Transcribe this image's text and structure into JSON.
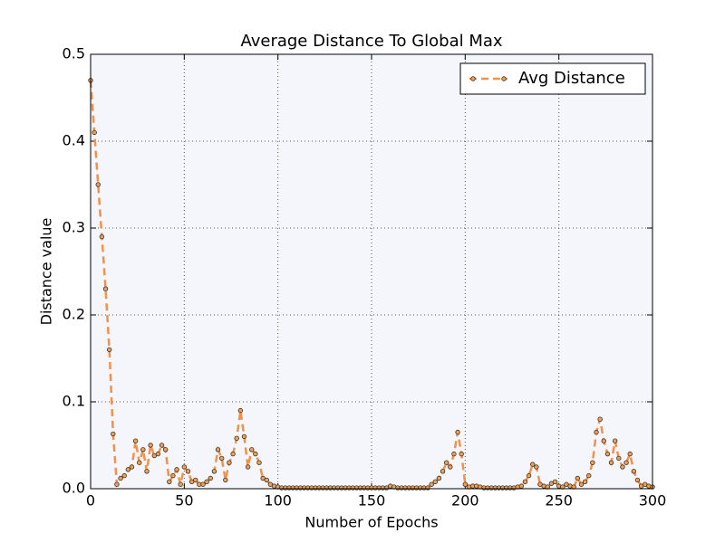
{
  "chart_data": {
    "type": "line",
    "title": "Average Distance To Global Max",
    "xlabel": "Number of Epochs",
    "ylabel": "Distance value",
    "x": [
      0,
      2,
      4,
      6,
      8,
      10,
      12,
      14,
      16,
      18,
      20,
      22,
      24,
      26,
      28,
      30,
      32,
      34,
      36,
      38,
      40,
      42,
      44,
      46,
      48,
      50,
      52,
      54,
      56,
      58,
      60,
      62,
      64,
      66,
      68,
      70,
      72,
      74,
      76,
      78,
      80,
      82,
      84,
      86,
      88,
      90,
      92,
      94,
      96,
      98,
      100,
      102,
      104,
      106,
      108,
      110,
      112,
      114,
      116,
      118,
      120,
      122,
      124,
      126,
      128,
      130,
      132,
      134,
      136,
      138,
      140,
      142,
      144,
      146,
      148,
      150,
      152,
      154,
      156,
      158,
      160,
      162,
      164,
      166,
      168,
      170,
      172,
      174,
      176,
      178,
      180,
      182,
      184,
      186,
      188,
      190,
      192,
      194,
      196,
      198,
      200,
      202,
      204,
      206,
      208,
      210,
      212,
      214,
      216,
      218,
      220,
      222,
      224,
      226,
      228,
      230,
      232,
      234,
      236,
      238,
      240,
      242,
      244,
      246,
      248,
      250,
      252,
      254,
      256,
      258,
      260,
      262,
      264,
      266,
      268,
      270,
      272,
      274,
      276,
      278,
      280,
      282,
      284,
      286,
      288,
      290,
      292,
      294,
      296,
      298,
      300
    ],
    "series": [
      {
        "name": "Avg Distance",
        "color": "#f0924a",
        "marker_color": "#f0a050",
        "values": [
          0.47,
          0.41,
          0.35,
          0.29,
          0.23,
          0.16,
          0.063,
          0.005,
          0.012,
          0.015,
          0.022,
          0.025,
          0.055,
          0.03,
          0.045,
          0.02,
          0.05,
          0.038,
          0.04,
          0.05,
          0.045,
          0.008,
          0.015,
          0.022,
          0.005,
          0.025,
          0.02,
          0.008,
          0.01,
          0.005,
          0.005,
          0.008,
          0.012,
          0.02,
          0.045,
          0.035,
          0.01,
          0.03,
          0.04,
          0.058,
          0.09,
          0.06,
          0.025,
          0.045,
          0.04,
          0.03,
          0.012,
          0.01,
          0.005,
          0.003,
          0.002,
          0.001,
          0.001,
          0.001,
          0.001,
          0.001,
          0.001,
          0.001,
          0.001,
          0.001,
          0.001,
          0.001,
          0.001,
          0.001,
          0.001,
          0.001,
          0.001,
          0.001,
          0.001,
          0.001,
          0.001,
          0.001,
          0.001,
          0.001,
          0.001,
          0.001,
          0.001,
          0.001,
          0.001,
          0.001,
          0.003,
          0.002,
          0.001,
          0.001,
          0.001,
          0.001,
          0.001,
          0.001,
          0.001,
          0.001,
          0.001,
          0.005,
          0.008,
          0.012,
          0.02,
          0.03,
          0.025,
          0.04,
          0.065,
          0.04,
          0.005,
          0.002,
          0.003,
          0.003,
          0.002,
          0.001,
          0.001,
          0.001,
          0.001,
          0.001,
          0.001,
          0.001,
          0.001,
          0.001,
          0.002,
          0.003,
          0.008,
          0.015,
          0.028,
          0.025,
          0.005,
          0.003,
          0.002,
          0.006,
          0.008,
          0.003,
          0.002,
          0.005,
          0.003,
          0.002,
          0.012,
          0.005,
          0.008,
          0.015,
          0.03,
          0.065,
          0.08,
          0.055,
          0.04,
          0.03,
          0.055,
          0.035,
          0.025,
          0.03,
          0.04,
          0.02,
          0.01,
          0.003,
          0.005,
          0.003,
          0.002
        ]
      }
    ],
    "xlim": [
      0,
      300
    ],
    "xticks": [
      0,
      50,
      100,
      150,
      200,
      250,
      300
    ],
    "ylim": [
      0,
      0.5
    ],
    "yticks": [
      {
        "value": 0,
        "label": "0.0"
      },
      0.1,
      0.2,
      0.3,
      0.4,
      0.5
    ],
    "grid": true,
    "legend": "upper right",
    "background": "#f5f6fc"
  }
}
